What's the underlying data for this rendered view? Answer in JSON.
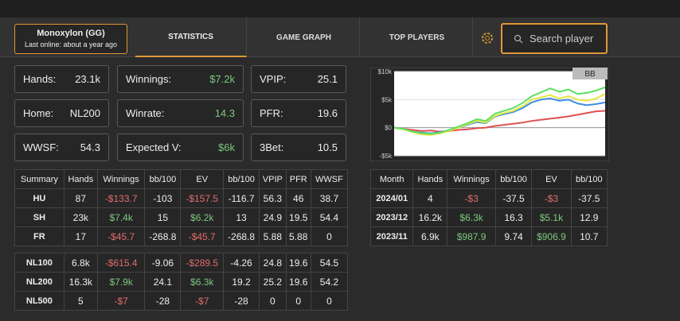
{
  "header": {
    "player": "Monoxylon (GG)",
    "last_online": "Last online: about a year ago",
    "tabs": [
      "STATISTICS",
      "GAME GRAPH",
      "TOP PLAYERS"
    ],
    "search_placeholder": "Search player"
  },
  "stats": [
    [
      {
        "label": "Hands:",
        "value": "23.1k"
      },
      {
        "label": "Winnings:",
        "value": "$7.2k",
        "positive": true
      },
      {
        "label": "VPIP:",
        "value": "25.1"
      }
    ],
    [
      {
        "label": "Home:",
        "value": "NL200"
      },
      {
        "label": "Winrate:",
        "value": "14.3",
        "positive": true
      },
      {
        "label": "PFR:",
        "value": "19.6"
      }
    ],
    [
      {
        "label": "WWSF:",
        "value": "54.3"
      },
      {
        "label": "Expected V:",
        "value": "$6k",
        "positive": true
      },
      {
        "label": "3Bet:",
        "value": "10.5"
      }
    ]
  ],
  "summary_table": {
    "columns": [
      "Summary",
      "Hands",
      "Winnings",
      "bb/100",
      "EV",
      "bb/100",
      "VPIP",
      "PFR",
      "WWSF"
    ],
    "groups": [
      [
        [
          "HU",
          "87",
          "-$133.7",
          "-103",
          "-$157.5",
          "-116.7",
          "56.3",
          "46",
          "38.7"
        ],
        [
          "SH",
          "23k",
          "$7.4k",
          "15",
          "$6.2k",
          "13",
          "24.9",
          "19.5",
          "54.4"
        ],
        [
          "FR",
          "17",
          "-$45.7",
          "-268.8",
          "-$45.7",
          "-268.8",
          "5.88",
          "5.88",
          "0"
        ]
      ],
      [
        [
          "NL100",
          "6.8k",
          "-$615.4",
          "-9.06",
          "-$289.5",
          "-4.26",
          "24.8",
          "19.6",
          "54.5"
        ],
        [
          "NL200",
          "16.3k",
          "$7.9k",
          "24.1",
          "$6.3k",
          "19.2",
          "25.2",
          "19.6",
          "54.2"
        ],
        [
          "NL500",
          "5",
          "-$7",
          "-28",
          "-$7",
          "-28",
          "0",
          "0",
          "0"
        ]
      ]
    ]
  },
  "month_table": {
    "columns": [
      "Month",
      "Hands",
      "Winnings",
      "bb/100",
      "EV",
      "bb/100"
    ],
    "rows": [
      [
        "2024/01",
        "4",
        "-$3",
        "-37.5",
        "-$3",
        "-37.5"
      ],
      [
        "2023/12",
        "16.2k",
        "$6.3k",
        "16.3",
        "$5.1k",
        "12.9"
      ],
      [
        "2023/11",
        "6.9k",
        "$987.9",
        "9.74",
        "$906.9",
        "10.7"
      ]
    ]
  },
  "graph": {
    "badge": "BB",
    "ylim": [
      -5000,
      10000
    ],
    "yticks": [
      {
        "value": 10000,
        "label": "$10k"
      },
      {
        "value": 5000,
        "label": "$5k"
      },
      {
        "value": 0,
        "label": "$0"
      },
      {
        "value": -5000,
        "label": "-$5k"
      }
    ],
    "series": [
      {
        "color": "#e05050",
        "values": [
          0,
          -200,
          -400,
          -600,
          -500,
          -700,
          -600,
          -400,
          -300,
          -100,
          0,
          300,
          500,
          700,
          900,
          1200,
          1400,
          1600,
          1800,
          2000,
          2300,
          2600,
          2900,
          3000
        ]
      },
      {
        "color": "#3f8fe0",
        "values": [
          0,
          -300,
          -700,
          -900,
          -1000,
          -800,
          -500,
          0,
          500,
          1000,
          800,
          2000,
          2400,
          2800,
          3500,
          4500,
          5000,
          5200,
          4800,
          5000,
          4300,
          4000,
          4200,
          4500
        ]
      },
      {
        "color": "#e6e640",
        "values": [
          0,
          -300,
          -800,
          -1200,
          -1300,
          -1000,
          -600,
          0,
          600,
          1200,
          900,
          2100,
          2600,
          3000,
          3800,
          5000,
          5400,
          5800,
          5200,
          5600,
          5000,
          4800,
          5200,
          6000
        ]
      },
      {
        "color": "#5fe05f",
        "values": [
          0,
          -200,
          -700,
          -1000,
          -1100,
          -900,
          -400,
          200,
          800,
          1500,
          1200,
          2500,
          3000,
          3500,
          4400,
          5600,
          6300,
          7000,
          6400,
          6800,
          6000,
          6200,
          6600,
          7200
        ]
      }
    ]
  }
}
